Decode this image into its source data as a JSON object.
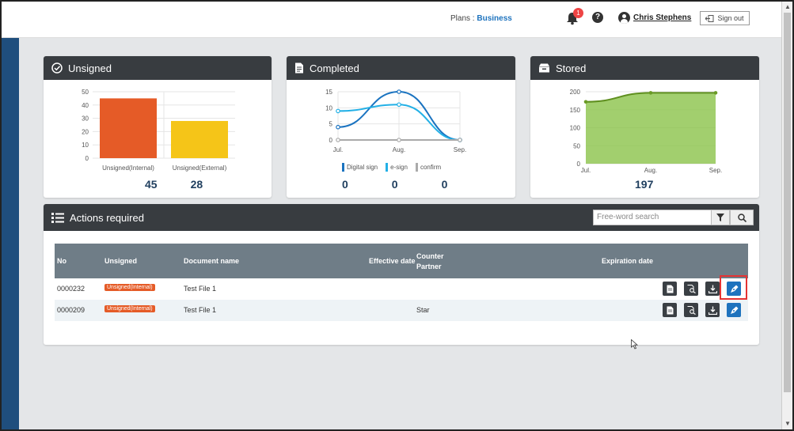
{
  "header": {
    "plans_label": "Plans :",
    "plan_name": "Business",
    "notification_count": "1",
    "help_label": "?",
    "user_name": "Chris Stephens",
    "signout_label": "Sign out"
  },
  "cards": {
    "unsigned": {
      "title": "Unsigned",
      "count_internal": "45",
      "count_external": "28"
    },
    "completed": {
      "title": "Completed",
      "legend": [
        "Digital sign",
        "e-sign",
        "confirm"
      ],
      "counts": [
        "0",
        "0",
        "0"
      ]
    },
    "stored": {
      "title": "Stored",
      "total": "197"
    }
  },
  "actions": {
    "title": "Actions required",
    "search_placeholder": "Free-word search",
    "columns": {
      "no": "No",
      "unsigned": "Unsigned",
      "document_name": "Document name",
      "effective_date": "Effective date",
      "counter_partner": "Counter Partner",
      "expiration_date": "Expiration date"
    },
    "rows": [
      {
        "no": "0000232",
        "status": "Unsigned(Internal)",
        "document": "Test File 1",
        "effective": "",
        "partner": "",
        "expiration": ""
      },
      {
        "no": "0000209",
        "status": "Unsigned(Internal)",
        "document": "Test File 1",
        "effective": "",
        "partner": "Star",
        "expiration": ""
      }
    ]
  },
  "chart_data": [
    {
      "type": "bar",
      "title": "Unsigned",
      "categories": [
        "Unsigned(Internal)",
        "Unsigned(External)"
      ],
      "values": [
        45,
        28
      ],
      "ylim": [
        0,
        50
      ],
      "yticks": [
        0,
        10,
        20,
        30,
        40,
        50
      ],
      "colors": [
        "#e55b27",
        "#f5c518"
      ],
      "grid": true
    },
    {
      "type": "line",
      "title": "Completed",
      "categories": [
        "Jul.",
        "Aug.",
        "Sep."
      ],
      "series": [
        {
          "name": "Digital sign",
          "values": [
            4,
            15,
            0
          ],
          "color": "#1a73c0"
        },
        {
          "name": "e-sign",
          "values": [
            9,
            11,
            0
          ],
          "color": "#23b0e6"
        },
        {
          "name": "confirm",
          "values": [
            0,
            0,
            0
          ],
          "color": "#aaaaaa"
        }
      ],
      "ylim": [
        0,
        15
      ],
      "yticks": [
        0,
        5,
        10,
        15
      ],
      "grid": true,
      "legend": "bottom"
    },
    {
      "type": "area",
      "title": "Stored",
      "categories": [
        "Jul.",
        "Aug.",
        "Sep."
      ],
      "values": [
        172,
        197,
        197
      ],
      "ylim": [
        0,
        200
      ],
      "yticks": [
        0,
        50,
        100,
        150,
        200
      ],
      "color": "#8bc34a",
      "grid": true
    }
  ]
}
